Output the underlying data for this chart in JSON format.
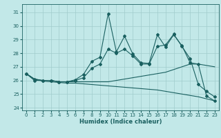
{
  "xlabel": "Humidex (Indice chaleur)",
  "background_color": "#c2e8e8",
  "grid_color": "#a0cccc",
  "line_color": "#1a6060",
  "xlim": [
    -0.5,
    23.5
  ],
  "ylim": [
    23.8,
    31.6
  ],
  "yticks": [
    24,
    25,
    26,
    27,
    28,
    29,
    30,
    31
  ],
  "xticks": [
    0,
    1,
    2,
    3,
    4,
    5,
    6,
    7,
    8,
    9,
    10,
    11,
    12,
    13,
    14,
    15,
    16,
    17,
    18,
    19,
    20,
    21,
    22,
    23
  ],
  "line1_x": [
    0,
    1,
    2,
    3,
    4,
    5,
    6,
    7,
    8,
    9,
    10,
    11,
    12,
    13,
    14,
    15,
    16,
    17,
    18,
    19,
    20,
    21,
    22,
    23
  ],
  "line1_y": [
    26.5,
    26.1,
    25.95,
    25.9,
    25.85,
    25.8,
    25.8,
    25.75,
    25.7,
    25.65,
    25.6,
    25.55,
    25.5,
    25.45,
    25.4,
    25.35,
    25.3,
    25.2,
    25.1,
    25.0,
    24.9,
    24.8,
    24.65,
    24.5
  ],
  "line2_x": [
    0,
    1,
    2,
    3,
    4,
    5,
    6,
    7,
    8,
    9,
    10,
    11,
    12,
    13,
    14,
    15,
    16,
    17,
    18,
    19,
    20,
    21,
    22,
    23
  ],
  "line2_y": [
    26.5,
    26.1,
    26.0,
    26.0,
    25.9,
    25.9,
    25.9,
    25.9,
    25.9,
    25.9,
    25.9,
    26.0,
    26.1,
    26.2,
    26.3,
    26.4,
    26.5,
    26.6,
    26.8,
    27.0,
    27.2,
    27.2,
    27.1,
    27.0
  ],
  "line3_x": [
    0,
    1,
    2,
    3,
    4,
    5,
    6,
    7,
    8,
    9,
    10,
    11,
    12,
    13,
    14,
    15,
    16,
    17,
    18,
    19,
    20,
    21,
    22,
    23
  ],
  "line3_y": [
    26.5,
    26.0,
    26.0,
    26.0,
    25.9,
    25.9,
    26.0,
    26.2,
    26.9,
    27.2,
    28.3,
    28.0,
    28.3,
    27.8,
    27.2,
    27.2,
    28.5,
    28.6,
    29.4,
    28.5,
    27.6,
    25.7,
    25.2,
    24.8
  ],
  "line4_x": [
    0,
    1,
    2,
    3,
    4,
    5,
    6,
    7,
    8,
    9,
    10,
    11,
    12,
    13,
    14,
    15,
    16,
    17,
    18,
    19,
    20,
    21,
    22,
    23
  ],
  "line4_y": [
    26.5,
    26.1,
    26.0,
    26.0,
    25.9,
    25.9,
    26.05,
    26.45,
    27.4,
    27.7,
    30.9,
    28.1,
    29.25,
    27.95,
    27.3,
    27.25,
    29.35,
    28.45,
    29.35,
    28.55,
    27.3,
    27.2,
    24.85,
    24.5
  ]
}
